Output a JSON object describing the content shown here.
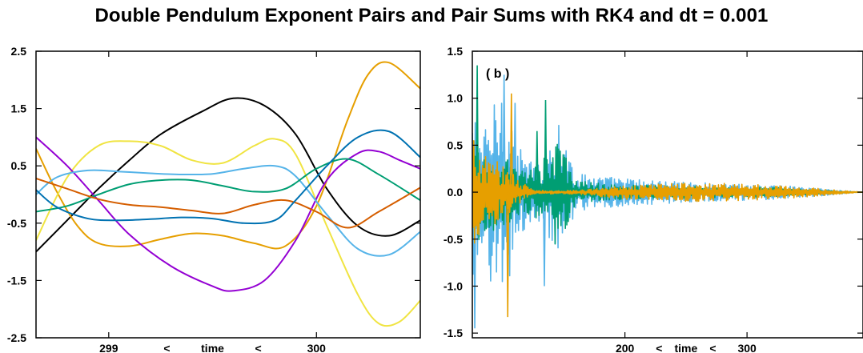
{
  "title": "Double Pendulum Exponent Pairs and Pair Sums with RK4 and dt = 0.001",
  "chart_data": [
    {
      "type": "line",
      "panel_label": "",
      "xlim": [
        298.65,
        300.5
      ],
      "ylim": [
        -2.5,
        2.5
      ],
      "x_ticks": [
        299,
        300
      ],
      "y_ticks": [
        -2.5,
        -1.5,
        -0.5,
        0.5,
        1.5,
        2.5
      ],
      "y_tick_labels": [
        "-2.5",
        "-1.5",
        "-0.5",
        "0.5",
        "1.5",
        "2.5"
      ],
      "xlabel_parts": [
        "299",
        "<",
        "time",
        "<",
        "300"
      ],
      "grid": false,
      "series": [
        {
          "color": "#000000",
          "x": [
            298.65,
            298.8,
            298.95,
            299.1,
            299.25,
            299.45,
            299.6,
            299.75,
            299.9,
            300.05,
            300.2,
            300.35,
            300.5
          ],
          "y": [
            -1.0,
            -0.45,
            0.1,
            0.6,
            1.05,
            1.45,
            1.68,
            1.55,
            1.05,
            0.1,
            -0.55,
            -0.72,
            -0.45
          ]
        },
        {
          "color": "#E69F00",
          "x": [
            298.65,
            298.75,
            298.85,
            298.95,
            299.1,
            299.25,
            299.4,
            299.55,
            299.7,
            299.85,
            300.0,
            300.15,
            300.25,
            300.35,
            300.5
          ],
          "y": [
            0.8,
            0.05,
            -0.55,
            -0.85,
            -0.9,
            -0.78,
            -0.68,
            -0.72,
            -0.85,
            -0.9,
            -0.2,
            1.3,
            2.1,
            2.3,
            1.85
          ]
        },
        {
          "color": "#F0E442",
          "x": [
            298.65,
            298.8,
            298.95,
            299.1,
            299.25,
            299.4,
            299.55,
            299.7,
            299.8,
            299.9,
            300.05,
            300.2,
            300.3,
            300.4,
            300.5
          ],
          "y": [
            -0.8,
            0.3,
            0.85,
            0.93,
            0.85,
            0.6,
            0.55,
            0.85,
            0.97,
            0.7,
            -0.55,
            -1.75,
            -2.25,
            -2.22,
            -1.85
          ]
        },
        {
          "color": "#9400D3",
          "x": [
            298.65,
            298.8,
            298.95,
            299.1,
            299.3,
            299.5,
            299.6,
            299.75,
            299.9,
            300.05,
            300.2,
            300.3,
            300.4,
            300.5
          ],
          "y": [
            1.0,
            0.5,
            -0.1,
            -0.7,
            -1.25,
            -1.6,
            -1.68,
            -1.5,
            -0.8,
            0.25,
            0.72,
            0.75,
            0.6,
            0.45
          ]
        },
        {
          "color": "#56B4E9",
          "x": [
            298.65,
            298.75,
            298.9,
            299.05,
            299.2,
            299.35,
            299.5,
            299.65,
            299.8,
            299.9,
            300.05,
            300.2,
            300.35,
            300.5
          ],
          "y": [
            0.0,
            0.3,
            0.42,
            0.4,
            0.37,
            0.35,
            0.36,
            0.45,
            0.5,
            0.32,
            -0.35,
            -0.95,
            -1.05,
            -0.65
          ]
        },
        {
          "color": "#009E73",
          "x": [
            298.65,
            298.8,
            298.95,
            299.1,
            299.25,
            299.4,
            299.55,
            299.7,
            299.85,
            300.0,
            300.15,
            300.3,
            300.5
          ],
          "y": [
            -0.3,
            -0.2,
            0.0,
            0.18,
            0.25,
            0.25,
            0.15,
            0.05,
            0.1,
            0.45,
            0.62,
            0.35,
            -0.1
          ]
        },
        {
          "color": "#D55E00",
          "x": [
            298.65,
            298.8,
            298.95,
            299.1,
            299.25,
            299.4,
            299.55,
            299.7,
            299.85,
            300.0,
            300.15,
            300.3,
            300.5
          ],
          "y": [
            0.28,
            0.1,
            -0.08,
            -0.18,
            -0.22,
            -0.28,
            -0.33,
            -0.18,
            -0.1,
            -0.3,
            -0.58,
            -0.3,
            0.12
          ]
        },
        {
          "color": "#0072B2",
          "x": [
            298.65,
            298.75,
            298.9,
            299.05,
            299.2,
            299.35,
            299.5,
            299.65,
            299.8,
            299.9,
            300.05,
            300.2,
            300.35,
            300.5
          ],
          "y": [
            0.08,
            -0.22,
            -0.42,
            -0.45,
            -0.43,
            -0.4,
            -0.42,
            -0.5,
            -0.45,
            -0.1,
            0.5,
            1.0,
            1.1,
            0.65
          ]
        }
      ]
    },
    {
      "type": "line",
      "panel_label": "( b )",
      "xlim": [
        75,
        395
      ],
      "ylim": [
        -1.55,
        1.5
      ],
      "x_ticks": [
        200,
        300
      ],
      "y_ticks": [
        -1.5,
        -1.0,
        -0.5,
        0.0,
        0.5,
        1.0,
        1.5
      ],
      "y_tick_labels": [
        "-1.5",
        "-1.0",
        "-0.5",
        "0.0",
        "0.5",
        "1.0",
        "1.5"
      ],
      "xlabel_parts": [
        "200",
        "<",
        "time",
        "<",
        "300"
      ],
      "grid": false,
      "series": [
        {
          "color": "#56B4E9",
          "envelope": [
            [
              75,
              0.9
            ],
            [
              85,
              0.65
            ],
            [
              100,
              1.25
            ],
            [
              112,
              0.5
            ],
            [
              125,
              0.3
            ],
            [
              135,
              0.35
            ],
            [
              145,
              0.85
            ],
            [
              160,
              0.2
            ],
            [
              200,
              0.15
            ],
            [
              260,
              0.1
            ],
            [
              320,
              0.08
            ],
            [
              360,
              0.04
            ],
            [
              395,
              0.0
            ]
          ],
          "spikes": [
            [
              77,
              -1.45
            ],
            [
              101,
              1.25
            ],
            [
              134,
              -1.0
            ],
            [
              110,
              0.95
            ],
            [
              90,
              -0.95
            ]
          ]
        },
        {
          "color": "#009E73",
          "envelope": [
            [
              75,
              0.6
            ],
            [
              85,
              0.45
            ],
            [
              100,
              0.4
            ],
            [
              112,
              0.25
            ],
            [
              125,
              0.25
            ],
            [
              135,
              0.4
            ],
            [
              145,
              0.6
            ],
            [
              160,
              0.12
            ],
            [
              200,
              0.08
            ],
            [
              260,
              0.06
            ],
            [
              320,
              0.05
            ],
            [
              360,
              0.02
            ],
            [
              395,
              0.0
            ]
          ],
          "spikes": [
            [
              79,
              1.35
            ],
            [
              135,
              0.98
            ],
            [
              128,
              0.65
            ]
          ]
        },
        {
          "color": "#E69F00",
          "envelope": [
            [
              75,
              0.6
            ],
            [
              85,
              0.4
            ],
            [
              100,
              0.3
            ],
            [
              112,
              0.15
            ],
            [
              125,
              0.02
            ],
            [
              160,
              0.02
            ],
            [
              200,
              0.08
            ],
            [
              260,
              0.1
            ],
            [
              320,
              0.08
            ],
            [
              360,
              0.04
            ],
            [
              395,
              0.0
            ]
          ],
          "spikes": [
            [
              104,
              -1.33
            ],
            [
              107,
              1.05
            ]
          ]
        }
      ]
    }
  ]
}
